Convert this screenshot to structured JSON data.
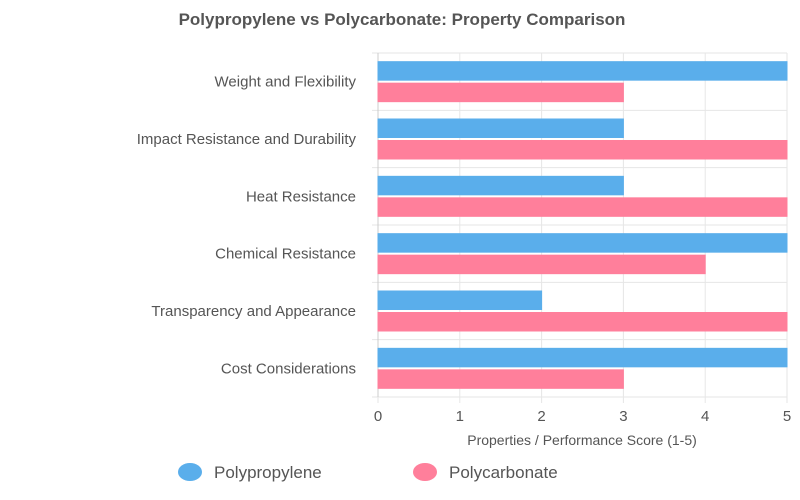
{
  "chart_data": {
    "type": "bar",
    "orientation": "horizontal",
    "title": "Polypropylene vs Polycarbonate: Property Comparison",
    "xlabel": "Properties / Performance Score (1-5)",
    "ylabel": "",
    "xlim": [
      0,
      5
    ],
    "xticks": [
      0,
      1,
      2,
      3,
      4,
      5
    ],
    "grid": true,
    "legend_position": "bottom",
    "categories": [
      "Weight and Flexibility",
      "Impact Resistance and Durability",
      "Heat Resistance",
      "Chemical Resistance",
      "Transparency and Appearance",
      "Cost Considerations"
    ],
    "series": [
      {
        "name": "Polypropylene",
        "color": "#5aaeeb",
        "values": [
          5,
          3,
          3,
          5,
          2,
          5
        ]
      },
      {
        "name": "Polycarbonate",
        "color": "#ff7f9b",
        "values": [
          3,
          5,
          5,
          4,
          5,
          3
        ]
      }
    ]
  }
}
